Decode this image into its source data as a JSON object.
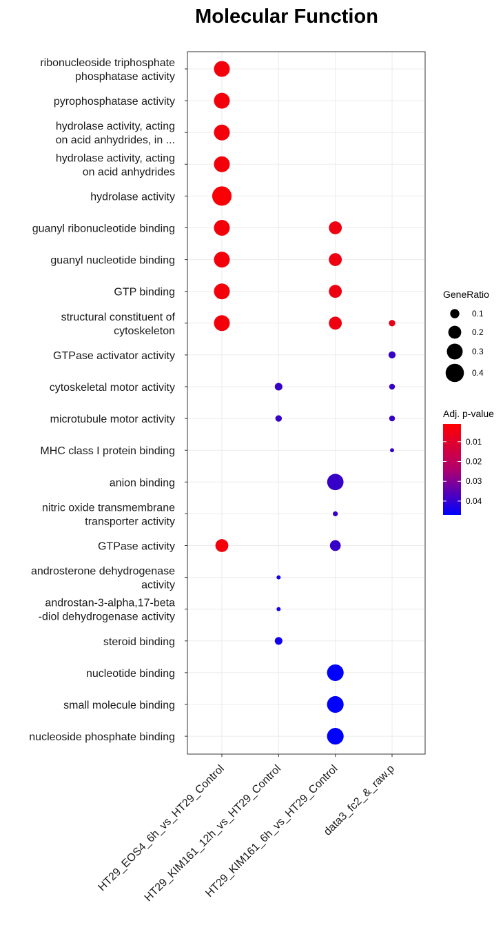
{
  "chart_data": {
    "type": "scatter",
    "title": "Molecular Function",
    "x_categories": [
      "HT29_EOS4_6h_vs_HT29_Control",
      "HT29_KIM161_12h_vs_HT29_Control",
      "HT29_KIM161_6h_vs_HT29_Control",
      "data3_fc2_&_raw.p"
    ],
    "y_categories": [
      [
        "ribonucleoside triphosphate",
        "phosphatase activity"
      ],
      [
        "pyrophosphatase activity"
      ],
      [
        "hydrolase activity, acting",
        "on acid anhydrides, in ..."
      ],
      [
        "hydrolase activity, acting",
        "on acid anhydrides"
      ],
      [
        "hydrolase activity"
      ],
      [
        "guanyl ribonucleotide binding"
      ],
      [
        "guanyl nucleotide binding"
      ],
      [
        "GTP binding"
      ],
      [
        "structural constituent of",
        "cytoskeleton"
      ],
      [
        "GTPase activator activity"
      ],
      [
        "cytoskeletal motor activity"
      ],
      [
        "microtubule motor activity"
      ],
      [
        "MHC class I protein binding"
      ],
      [
        "anion binding"
      ],
      [
        "nitric oxide transmembrane",
        "transporter activity"
      ],
      [
        "GTPase activity"
      ],
      [
        "androsterone dehydrogenase",
        "activity"
      ],
      [
        "androstan-3-alpha,17-beta",
        "-diol dehydrogenase activity"
      ],
      [
        "steroid binding"
      ],
      [
        "nucleotide binding"
      ],
      [
        "small molecule binding"
      ],
      [
        "nucleoside phosphate binding"
      ]
    ],
    "points": [
      {
        "x": 0,
        "y": 0,
        "gene_ratio": 0.3,
        "padj": 0.003
      },
      {
        "x": 0,
        "y": 1,
        "gene_ratio": 0.3,
        "padj": 0.003
      },
      {
        "x": 0,
        "y": 2,
        "gene_ratio": 0.3,
        "padj": 0.003
      },
      {
        "x": 0,
        "y": 3,
        "gene_ratio": 0.3,
        "padj": 0.003
      },
      {
        "x": 0,
        "y": 4,
        "gene_ratio": 0.45,
        "padj": 0.002
      },
      {
        "x": 0,
        "y": 5,
        "gene_ratio": 0.3,
        "padj": 0.003
      },
      {
        "x": 0,
        "y": 6,
        "gene_ratio": 0.3,
        "padj": 0.003
      },
      {
        "x": 0,
        "y": 7,
        "gene_ratio": 0.3,
        "padj": 0.003
      },
      {
        "x": 0,
        "y": 8,
        "gene_ratio": 0.3,
        "padj": 0.003
      },
      {
        "x": 0,
        "y": 15,
        "gene_ratio": 0.2,
        "padj": 0.003
      },
      {
        "x": 2,
        "y": 5,
        "gene_ratio": 0.2,
        "padj": 0.004
      },
      {
        "x": 2,
        "y": 6,
        "gene_ratio": 0.2,
        "padj": 0.004
      },
      {
        "x": 2,
        "y": 7,
        "gene_ratio": 0.2,
        "padj": 0.004
      },
      {
        "x": 2,
        "y": 8,
        "gene_ratio": 0.2,
        "padj": 0.004
      },
      {
        "x": 2,
        "y": 13,
        "gene_ratio": 0.32,
        "padj": 0.037
      },
      {
        "x": 2,
        "y": 14,
        "gene_ratio": 0.03,
        "padj": 0.037
      },
      {
        "x": 2,
        "y": 15,
        "gene_ratio": 0.14,
        "padj": 0.037
      },
      {
        "x": 2,
        "y": 19,
        "gene_ratio": 0.33,
        "padj": 0.049
      },
      {
        "x": 2,
        "y": 20,
        "gene_ratio": 0.33,
        "padj": 0.049
      },
      {
        "x": 2,
        "y": 21,
        "gene_ratio": 0.33,
        "padj": 0.049
      },
      {
        "x": 1,
        "y": 10,
        "gene_ratio": 0.07,
        "padj": 0.037
      },
      {
        "x": 1,
        "y": 11,
        "gene_ratio": 0.05,
        "padj": 0.037
      },
      {
        "x": 1,
        "y": 16,
        "gene_ratio": 0.02,
        "padj": 0.044
      },
      {
        "x": 1,
        "y": 17,
        "gene_ratio": 0.02,
        "padj": 0.044
      },
      {
        "x": 1,
        "y": 18,
        "gene_ratio": 0.07,
        "padj": 0.044
      },
      {
        "x": 3,
        "y": 8,
        "gene_ratio": 0.05,
        "padj": 0.005
      },
      {
        "x": 3,
        "y": 9,
        "gene_ratio": 0.06,
        "padj": 0.037
      },
      {
        "x": 3,
        "y": 10,
        "gene_ratio": 0.04,
        "padj": 0.037
      },
      {
        "x": 3,
        "y": 11,
        "gene_ratio": 0.04,
        "padj": 0.037
      },
      {
        "x": 3,
        "y": 12,
        "gene_ratio": 0.02,
        "padj": 0.037
      }
    ],
    "size_legend": {
      "title": "GeneRatio",
      "values": [
        0.1,
        0.2,
        0.3,
        0.4
      ],
      "labels": [
        "0.1",
        "0.2",
        "0.3",
        "0.4"
      ]
    },
    "color_legend": {
      "title": "Adj. p-value",
      "range": [
        0.001,
        0.047
      ],
      "ticks": [
        0.01,
        0.02,
        0.03,
        0.04
      ],
      "tick_labels": [
        "0.01",
        "0.02",
        "0.03",
        "0.04"
      ],
      "low_color": "#ff0000",
      "high_color": "#0000ff"
    },
    "grid": true,
    "legend_position": "right"
  }
}
